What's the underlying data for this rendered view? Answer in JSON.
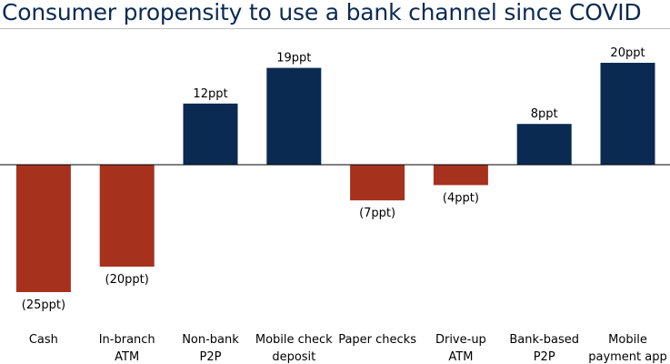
{
  "chart_data": {
    "type": "bar",
    "title": "Consumer propensity to use a bank channel since COVID",
    "categories": [
      [
        "Cash"
      ],
      [
        "In-branch",
        "ATM"
      ],
      [
        "Non-bank",
        "P2P"
      ],
      [
        "Mobile check",
        "deposit"
      ],
      [
        "Paper checks"
      ],
      [
        "Drive-up",
        "ATM"
      ],
      [
        "Bank-based",
        "P2P"
      ],
      [
        "Mobile",
        "payment app"
      ]
    ],
    "values": [
      -25,
      -20,
      12,
      19,
      -7,
      -4,
      8,
      20
    ],
    "data_labels": [
      "(25ppt)",
      "(20ppt)",
      "12ppt",
      "19ppt",
      "(7ppt)",
      "(4ppt)",
      "8ppt",
      "20ppt"
    ],
    "unit": "ppt",
    "ylim": [
      -25,
      20
    ],
    "grid": false,
    "legend": "none",
    "colors": {
      "positive": "#0b2a52",
      "negative": "#a6311d",
      "axis": "#000000",
      "title": "#0b2a52"
    }
  }
}
